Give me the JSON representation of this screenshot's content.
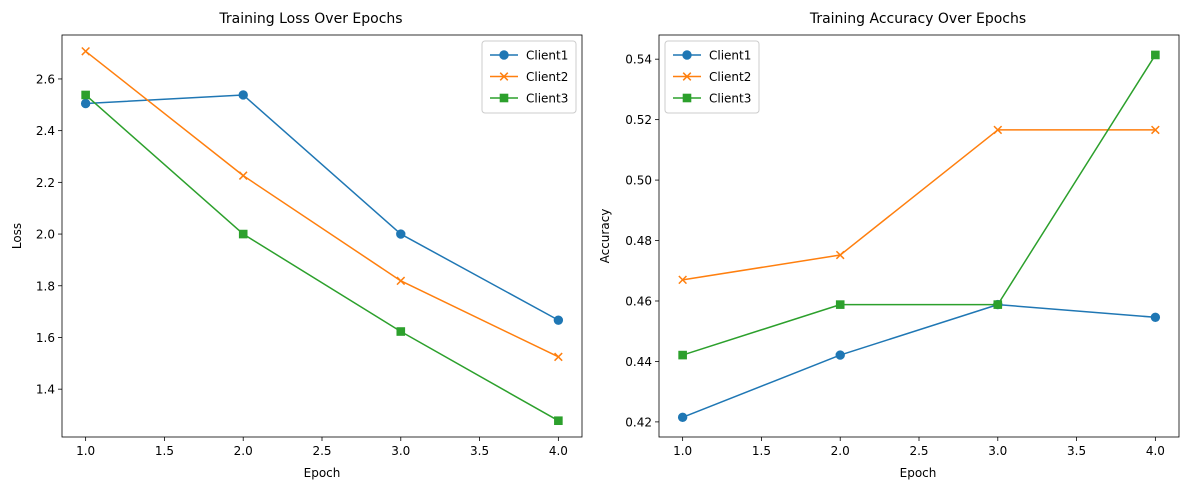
{
  "chart_data": [
    {
      "type": "line",
      "title": "Training Loss Over Epochs",
      "xlabel": "Epoch",
      "ylabel": "Loss",
      "xlim": [
        0.85,
        4.15
      ],
      "ylim": [
        1.215,
        2.77
      ],
      "xticks": [
        1.0,
        1.5,
        2.0,
        2.5,
        3.0,
        3.5,
        4.0
      ],
      "xtick_labels": [
        "1.0",
        "1.5",
        "2.0",
        "2.5",
        "3.0",
        "3.5",
        "4.0"
      ],
      "yticks": [
        1.4,
        1.6,
        1.8,
        2.0,
        2.2,
        2.4,
        2.6
      ],
      "ytick_labels": [
        "1.4",
        "1.6",
        "1.8",
        "2.0",
        "2.2",
        "2.4",
        "2.6"
      ],
      "x": [
        1,
        2,
        3,
        4
      ],
      "series": [
        {
          "name": "Client1",
          "color": "#1f77b4",
          "marker": "circle",
          "values": [
            2.505,
            2.538,
            2.0,
            1.667
          ]
        },
        {
          "name": "Client2",
          "color": "#ff7f0e",
          "marker": "x",
          "values": [
            2.707,
            2.226,
            1.819,
            1.525
          ]
        },
        {
          "name": "Client3",
          "color": "#2ca02c",
          "marker": "square",
          "values": [
            2.538,
            2.0,
            1.623,
            1.278
          ]
        }
      ],
      "legend": "top-right",
      "grid": false
    },
    {
      "type": "line",
      "title": "Training Accuracy Over Epochs",
      "xlabel": "Epoch",
      "ylabel": "Accuracy",
      "xlim": [
        0.85,
        4.15
      ],
      "ylim": [
        0.415,
        0.548
      ],
      "xticks": [
        1.0,
        1.5,
        2.0,
        2.5,
        3.0,
        3.5,
        4.0
      ],
      "xtick_labels": [
        "1.0",
        "1.5",
        "2.0",
        "2.5",
        "3.0",
        "3.5",
        "4.0"
      ],
      "yticks": [
        0.42,
        0.44,
        0.46,
        0.48,
        0.5,
        0.52,
        0.54
      ],
      "ytick_labels": [
        "0.42",
        "0.44",
        "0.46",
        "0.48",
        "0.50",
        "0.52",
        "0.54"
      ],
      "x": [
        1,
        2,
        3,
        4
      ],
      "series": [
        {
          "name": "Client1",
          "color": "#1f77b4",
          "marker": "circle",
          "values": [
            0.4215,
            0.4421,
            0.4588,
            0.4546
          ]
        },
        {
          "name": "Client2",
          "color": "#ff7f0e",
          "marker": "x",
          "values": [
            0.467,
            0.4752,
            0.5166,
            0.5166
          ]
        },
        {
          "name": "Client3",
          "color": "#2ca02c",
          "marker": "square",
          "values": [
            0.4421,
            0.4588,
            0.4588,
            0.5414
          ]
        }
      ],
      "legend": "top-left",
      "grid": false
    }
  ]
}
